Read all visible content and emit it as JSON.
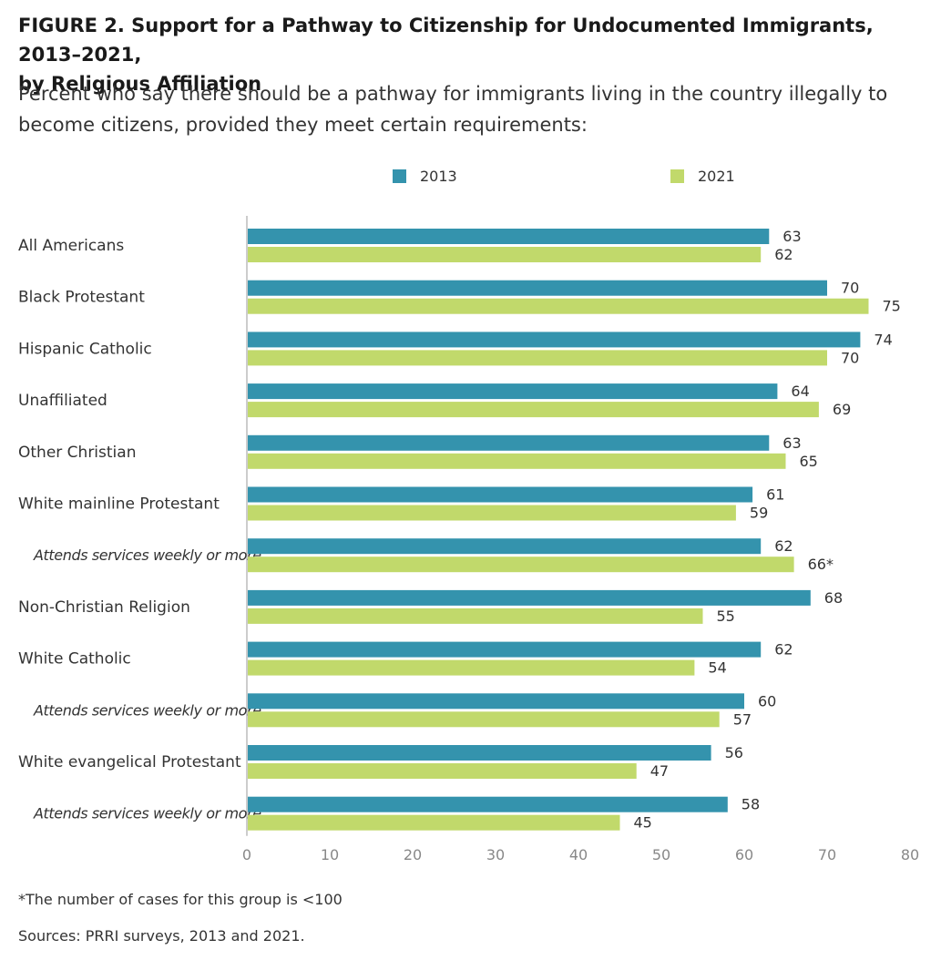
{
  "header": {
    "title_line1": "FIGURE 2.  Support for a Pathway to Citizenship for Undocumented Immigrants, 2013–2021,",
    "title_line2": "by Religious Affiliation",
    "subtitle_line1": "Percent who say there should be a pathway for immigrants living in the country illegally to",
    "subtitle_line2": "become citizens, provided they meet certain requirements:"
  },
  "legend": {
    "series_2013": "2013",
    "series_2021": "2021"
  },
  "colors": {
    "series_2013": "#3493ad",
    "series_2021": "#c1d96b",
    "axis": "#bbbbbb",
    "tick_label": "#888888"
  },
  "footer": {
    "note": "*The number of cases for this group is <100",
    "sources": "Sources: PRRI surveys, 2013 and 2021."
  },
  "chart_data": {
    "type": "bar",
    "orientation": "horizontal",
    "categories": [
      "All Americans",
      "Black Protestant",
      "Hispanic Catholic",
      "Unaffiliated",
      "Other Christian",
      "White mainline Protestant",
      "Attends services weekly or more",
      "Non-Christian Religion",
      "White Catholic",
      "Attends services weekly or more",
      "White evangelical Protestant",
      "Attends services weekly or more"
    ],
    "category_italic": [
      false,
      false,
      false,
      false,
      false,
      false,
      true,
      false,
      false,
      true,
      false,
      true
    ],
    "series": [
      {
        "name": "2013",
        "values": [
          63,
          70,
          74,
          64,
          63,
          61,
          62,
          68,
          62,
          60,
          56,
          58
        ],
        "labels": [
          "63",
          "70",
          "74",
          "64",
          "63",
          "61",
          "62",
          "68",
          "62",
          "60",
          "56",
          "58"
        ]
      },
      {
        "name": "2021",
        "values": [
          62,
          75,
          70,
          69,
          65,
          59,
          66,
          55,
          54,
          57,
          47,
          45
        ],
        "labels": [
          "62",
          "75",
          "70",
          "69",
          "65",
          "59",
          "66*",
          "55",
          "54",
          "57",
          "47",
          "45"
        ]
      }
    ],
    "xlim": [
      0,
      80
    ],
    "xticks": [
      0,
      10,
      20,
      30,
      40,
      50,
      60,
      70,
      80
    ],
    "legend_position": "top"
  }
}
